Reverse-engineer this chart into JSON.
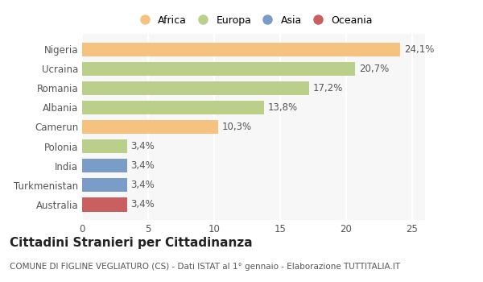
{
  "countries": [
    "Nigeria",
    "Ucraina",
    "Romania",
    "Albania",
    "Camerun",
    "Polonia",
    "India",
    "Turkmenistan",
    "Australia"
  ],
  "values": [
    24.1,
    20.7,
    17.2,
    13.8,
    10.3,
    3.4,
    3.4,
    3.4,
    3.4
  ],
  "labels": [
    "24,1%",
    "20,7%",
    "17,2%",
    "13,8%",
    "10,3%",
    "3,4%",
    "3,4%",
    "3,4%",
    "3,4%"
  ],
  "continents": [
    "Africa",
    "Europa",
    "Europa",
    "Europa",
    "Africa",
    "Europa",
    "Asia",
    "Asia",
    "Oceania"
  ],
  "bar_colors": [
    "#F5C37F",
    "#BACF8A",
    "#BACF8A",
    "#BACF8A",
    "#F5C37F",
    "#BACF8A",
    "#7A9DC8",
    "#7A9DC8",
    "#C95F5F"
  ],
  "legend_order": [
    "Africa",
    "Europa",
    "Asia",
    "Oceania"
  ],
  "legend_colors": [
    "#F5C37F",
    "#BACF8A",
    "#7A9DC8",
    "#C95F5F"
  ],
  "xlim": [
    0,
    26
  ],
  "xticks": [
    0,
    5,
    10,
    15,
    20,
    25
  ],
  "title": "Cittadini Stranieri per Cittadinanza",
  "subtitle": "COMUNE DI FIGLINE VEGLIATURO (CS) - Dati ISTAT al 1° gennaio - Elaborazione TUTTITALIA.IT",
  "fig_bg_color": "#ffffff",
  "plot_bg_color": "#f7f7f7",
  "grid_color": "#ffffff",
  "label_fontsize": 8.5,
  "tick_fontsize": 8.5,
  "title_fontsize": 11,
  "subtitle_fontsize": 7.5
}
